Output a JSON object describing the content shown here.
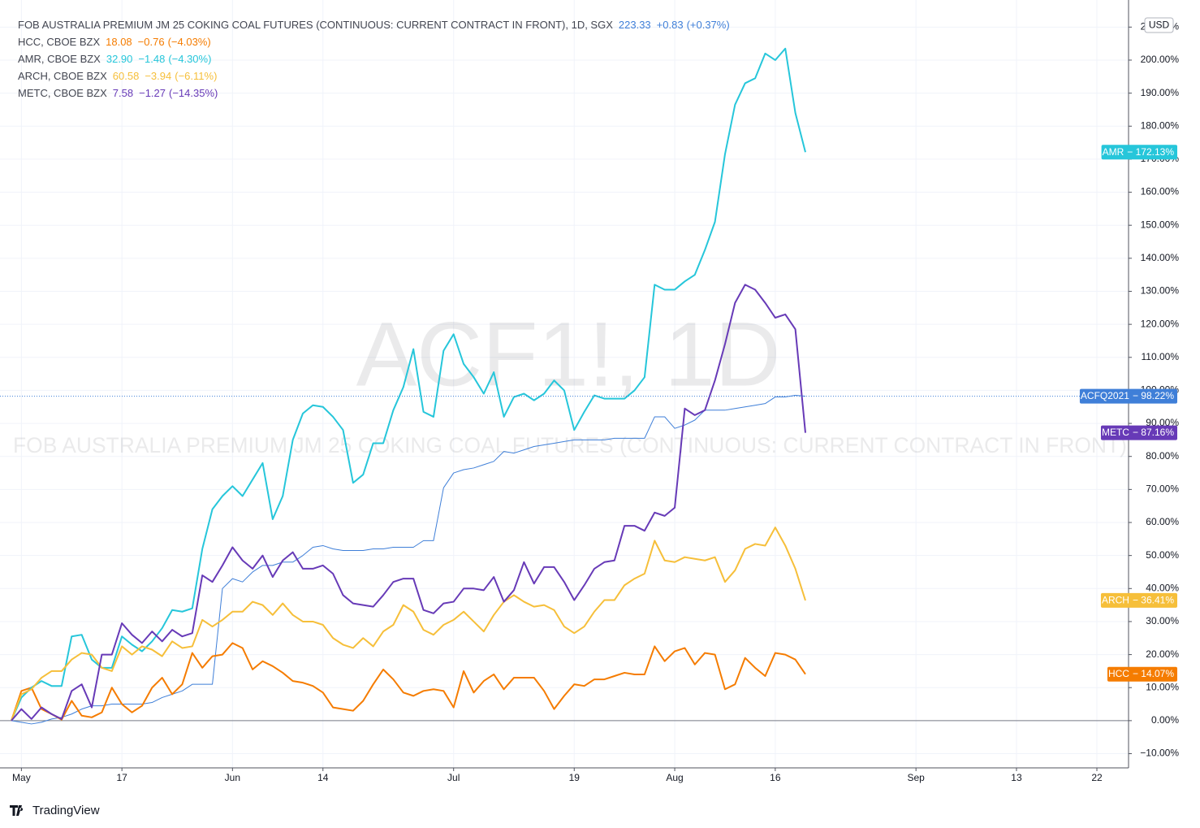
{
  "chart_data": {
    "type": "line",
    "currency": "USD",
    "branding": "TradingView",
    "watermark": {
      "symbol": "ACF1!, 1D",
      "description": "FOB AUSTRALIA PREMIUM JM 25 COKING COAL FUTURES (CONTINUOUS: CURRENT CONTRACT IN FRONT)"
    },
    "grid": true,
    "baseline": 0,
    "xlim": [
      -1.13,
      111.15
    ],
    "xticks": [
      {
        "value": 1,
        "label": "May"
      },
      {
        "value": 11,
        "label": "17"
      },
      {
        "value": 22,
        "label": "Jun"
      },
      {
        "value": 31,
        "label": "14"
      },
      {
        "value": 44,
        "label": "Jul"
      },
      {
        "value": 56,
        "label": "19"
      },
      {
        "value": 66,
        "label": "Aug"
      },
      {
        "value": 76,
        "label": "16"
      },
      {
        "value": 90,
        "label": "Sep"
      },
      {
        "value": 100,
        "label": "13"
      },
      {
        "value": 108,
        "label": "22"
      }
    ],
    "ylim": [
      -14.3,
      218.2
    ],
    "yticks": [
      {
        "value": -10,
        "label": "−10.00%"
      },
      {
        "value": 0,
        "label": "0.00%"
      },
      {
        "value": 10,
        "label": "10.00%"
      },
      {
        "value": 20,
        "label": "20.00%"
      },
      {
        "value": 30,
        "label": "30.00%"
      },
      {
        "value": 40,
        "label": "40.00%"
      },
      {
        "value": 50,
        "label": "50.00%"
      },
      {
        "value": 60,
        "label": "60.00%"
      },
      {
        "value": 70,
        "label": "70.00%"
      },
      {
        "value": 80,
        "label": "80.00%"
      },
      {
        "value": 90,
        "label": "90.00%"
      },
      {
        "value": 100,
        "label": "100.00%"
      },
      {
        "value": 110,
        "label": "110.00%"
      },
      {
        "value": 120,
        "label": "120.00%"
      },
      {
        "value": 130,
        "label": "130.00%"
      },
      {
        "value": 140,
        "label": "140.00%"
      },
      {
        "value": 150,
        "label": "150.00%"
      },
      {
        "value": 160,
        "label": "160.00%"
      },
      {
        "value": 170,
        "label": "170.00%"
      },
      {
        "value": 180,
        "label": "180.00%"
      },
      {
        "value": 190,
        "label": "190.00%"
      },
      {
        "value": 200,
        "label": "200.00%"
      },
      {
        "value": 210,
        "label": "210.00%"
      }
    ],
    "series": [
      {
        "name": "ACFQ2021",
        "legend_label": "FOB AUSTRALIA PREMIUM JM 25 COKING COAL FUTURES (CONTINUOUS: CURRENT CONTRACT IN FRONT), 1D, SGX",
        "last": "223.33",
        "change": "+0.83",
        "change_pct": "(+0.37%)",
        "end_label": "− 98.22%",
        "color": "#3f7fd8",
        "width": 1,
        "values": [
          0,
          -0.5,
          -1,
          -0.5,
          0.5,
          1,
          2,
          3.5,
          4.5,
          4.5,
          5,
          5,
          5,
          5,
          5.5,
          7,
          8,
          9,
          11,
          11,
          11,
          40,
          43,
          42,
          45,
          47,
          47,
          48,
          48,
          50,
          52.5,
          53,
          52,
          51.5,
          51.5,
          51.5,
          52,
          52,
          52.5,
          52.5,
          52.5,
          54.5,
          54.5,
          70.5,
          75,
          76,
          76.5,
          77.5,
          78.5,
          81.5,
          81,
          82,
          83,
          83.5,
          84,
          84.5,
          85,
          85,
          85,
          85,
          85.5,
          85.5,
          85.5,
          85.5,
          92,
          92,
          88.5,
          89.5,
          91,
          94,
          94,
          94,
          94.5,
          95,
          95.5,
          96,
          98,
          98,
          98.5,
          98.22
        ]
      },
      {
        "name": "HCC",
        "legend_label": "HCC, CBOE BZX",
        "last": "18.08",
        "change": "−0.76",
        "change_pct": "(−4.03%)",
        "end_label": "− 14.07%",
        "color": "#f57c00",
        "width": 2,
        "values": [
          0,
          9,
          10,
          3.5,
          2,
          0.3,
          6,
          1.5,
          1,
          2.5,
          10,
          5,
          2.5,
          4.5,
          10,
          13,
          8,
          11,
          20.5,
          16,
          19.5,
          20,
          23.5,
          22,
          15.5,
          18,
          16.5,
          14.5,
          12,
          11.5,
          10.5,
          8.5,
          4,
          3.5,
          3,
          6,
          11,
          15.5,
          12.5,
          8.5,
          7.5,
          9,
          9.5,
          9,
          4,
          15,
          8.5,
          12,
          14,
          9.5,
          13,
          13,
          13,
          9,
          3.5,
          7.5,
          11,
          10.5,
          12.5,
          12.5,
          13.5,
          14.5,
          14,
          14,
          22.5,
          18,
          21,
          22,
          17,
          20.5,
          20,
          9.5,
          11,
          19,
          16,
          13.5,
          20.5,
          20,
          18.5,
          14.07
        ]
      },
      {
        "name": "AMR",
        "legend_label": "AMR, CBOE BZX",
        "last": "32.90",
        "change": "−1.48",
        "change_pct": "(−4.30%)",
        "end_label": "− 172.13%",
        "color": "#26c6da",
        "width": 2,
        "values": [
          0,
          7,
          10,
          12,
          10.5,
          10.5,
          25.5,
          26,
          18.5,
          16,
          16,
          25.5,
          23,
          21,
          24,
          28,
          33.5,
          33,
          34,
          52,
          64,
          68,
          71,
          68,
          73,
          78,
          61,
          68,
          85,
          93,
          95.5,
          95,
          92,
          88,
          72,
          74.5,
          84,
          84,
          94,
          101,
          112.5,
          93.5,
          92,
          112,
          117,
          108,
          104,
          99,
          105.5,
          92,
          98,
          99,
          97,
          99,
          103,
          100,
          88,
          93.5,
          98.5,
          97.5,
          97.5,
          97.5,
          100,
          104,
          132,
          130.5,
          130.5,
          133,
          135,
          142.5,
          151,
          171.5,
          186.5,
          193,
          194.5,
          202,
          200,
          203.5,
          184,
          172.13
        ]
      },
      {
        "name": "ARCH",
        "legend_label": "ARCH, CBOE BZX",
        "last": "60.58",
        "change": "−3.94",
        "change_pct": "(−6.11%)",
        "end_label": "− 36.41%",
        "color": "#f6bf3a",
        "width": 2,
        "values": [
          0,
          8,
          9.5,
          13,
          15,
          15,
          18.5,
          20.5,
          20,
          16,
          15,
          22.5,
          20,
          22.5,
          21.5,
          19.5,
          24,
          22,
          22.5,
          30.5,
          28.5,
          30.5,
          33,
          33,
          36,
          35,
          32,
          35.5,
          32,
          30,
          30,
          29,
          25,
          23,
          22,
          25,
          22.5,
          27,
          29,
          35,
          33,
          27.5,
          26,
          29,
          30.5,
          33,
          30,
          27,
          32,
          36,
          38,
          36,
          34.5,
          35,
          33.5,
          28.5,
          26.5,
          28.5,
          33,
          36.5,
          36.5,
          41,
          43,
          44.5,
          54.5,
          48.5,
          48,
          49.5,
          49,
          48.5,
          49.5,
          42,
          45.5,
          52,
          53.5,
          53,
          58.5,
          53,
          46,
          36.41
        ]
      },
      {
        "name": "METC",
        "legend_label": "METC, CBOE BZX",
        "last": "7.58",
        "change": "−1.27",
        "change_pct": "(−14.35%)",
        "end_label": "− 87.16%",
        "color": "#673ab7",
        "width": 2,
        "values": [
          0,
          3.5,
          0.5,
          4,
          2,
          0.5,
          9,
          11,
          4,
          20,
          20,
          29.5,
          26,
          23.5,
          27,
          24,
          27.5,
          25.5,
          26.5,
          44,
          42,
          47,
          52.5,
          48.5,
          46,
          50,
          43.5,
          48.5,
          51,
          46,
          46,
          47,
          44.5,
          38,
          35.5,
          35,
          34.5,
          38,
          42,
          43,
          43,
          33.5,
          32.5,
          35.5,
          36,
          40,
          40,
          39.5,
          43.5,
          36,
          39.5,
          48,
          41.5,
          46.5,
          46.5,
          42,
          36.5,
          41,
          46,
          48,
          48.5,
          59,
          59,
          57.5,
          63,
          62,
          64.5,
          94.5,
          92.5,
          94,
          103,
          114,
          126.5,
          132,
          130.5,
          126.5,
          122,
          123,
          118.5,
          87.16
        ]
      }
    ]
  }
}
